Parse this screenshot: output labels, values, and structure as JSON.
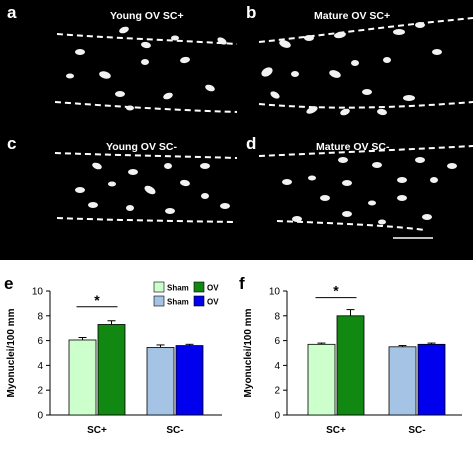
{
  "micrographs": [
    {
      "label": "a",
      "title": "Young OV SC+"
    },
    {
      "label": "b",
      "title": "Mature OV SC+"
    },
    {
      "label": "c",
      "title": "Young OV SC-"
    },
    {
      "label": "d",
      "title": "Mature OV SC-"
    }
  ],
  "colors": {
    "sham_sc_plus": "#ccffcc",
    "ov_sc_plus": "#118811",
    "sham_sc_minus": "#a5c3e4",
    "ov_sc_minus": "#0000ee"
  },
  "chart_data": [
    {
      "type": "bar",
      "panel": "e",
      "categories": [
        "SC+",
        "SC-"
      ],
      "series": [
        {
          "name": "Sham",
          "values": [
            6.05,
            5.45
          ],
          "errors": [
            0.2,
            0.2
          ]
        },
        {
          "name": "OV",
          "values": [
            7.3,
            5.6
          ],
          "errors": [
            0.3,
            0.1
          ]
        }
      ],
      "ylabel": "Myonuclei/100 mm",
      "ylim": [
        0,
        10
      ],
      "yticks": [
        0,
        2,
        4,
        6,
        8,
        10
      ],
      "significance": "*",
      "legend": {
        "position": "top-right",
        "entries": [
          "Sham",
          "OV",
          "Sham",
          "OV"
        ]
      }
    },
    {
      "type": "bar",
      "panel": "f",
      "categories": [
        "SC+",
        "SC-"
      ],
      "series": [
        {
          "name": "Sham",
          "values": [
            5.7,
            5.5
          ],
          "errors": [
            0.1,
            0.1
          ]
        },
        {
          "name": "OV",
          "values": [
            8.0,
            5.7
          ],
          "errors": [
            0.5,
            0.1
          ]
        }
      ],
      "ylabel": "Myonuclei/100 mm",
      "ylim": [
        0,
        10
      ],
      "yticks": [
        0,
        2,
        4,
        6,
        8,
        10
      ],
      "significance": "*"
    }
  ]
}
